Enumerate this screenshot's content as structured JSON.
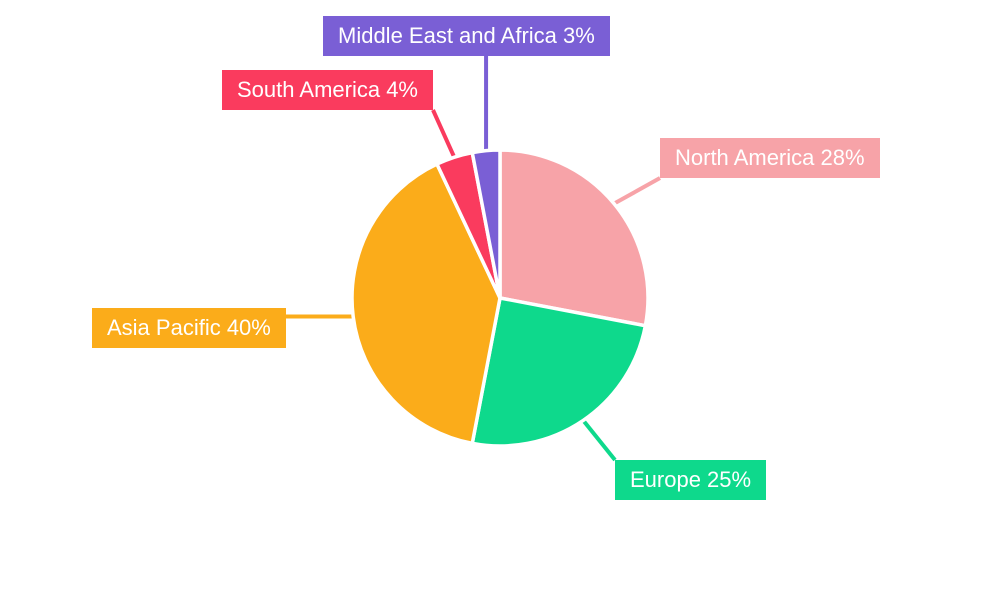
{
  "chart_data": {
    "type": "pie",
    "title": "",
    "categories": [
      "North America",
      "Europe",
      "Asia Pacific",
      "South America",
      "Middle East and Africa"
    ],
    "values": [
      28,
      25,
      40,
      4,
      3
    ],
    "colors": [
      "#f7a3a8",
      "#0ed98c",
      "#fbac1a",
      "#fa3b5e",
      "#7a5fd5"
    ],
    "labels": [
      "North America 28%",
      "Europe 25%",
      "Asia Pacific 40%",
      "South America 4%",
      "Middle East and Africa 3%"
    ],
    "unit": "%",
    "start_angle_deg": -90,
    "direction": "clockwise",
    "legend": "none",
    "grid": false,
    "slice_gap_color": "#ffffff",
    "label_text_color": "#ffffff"
  }
}
